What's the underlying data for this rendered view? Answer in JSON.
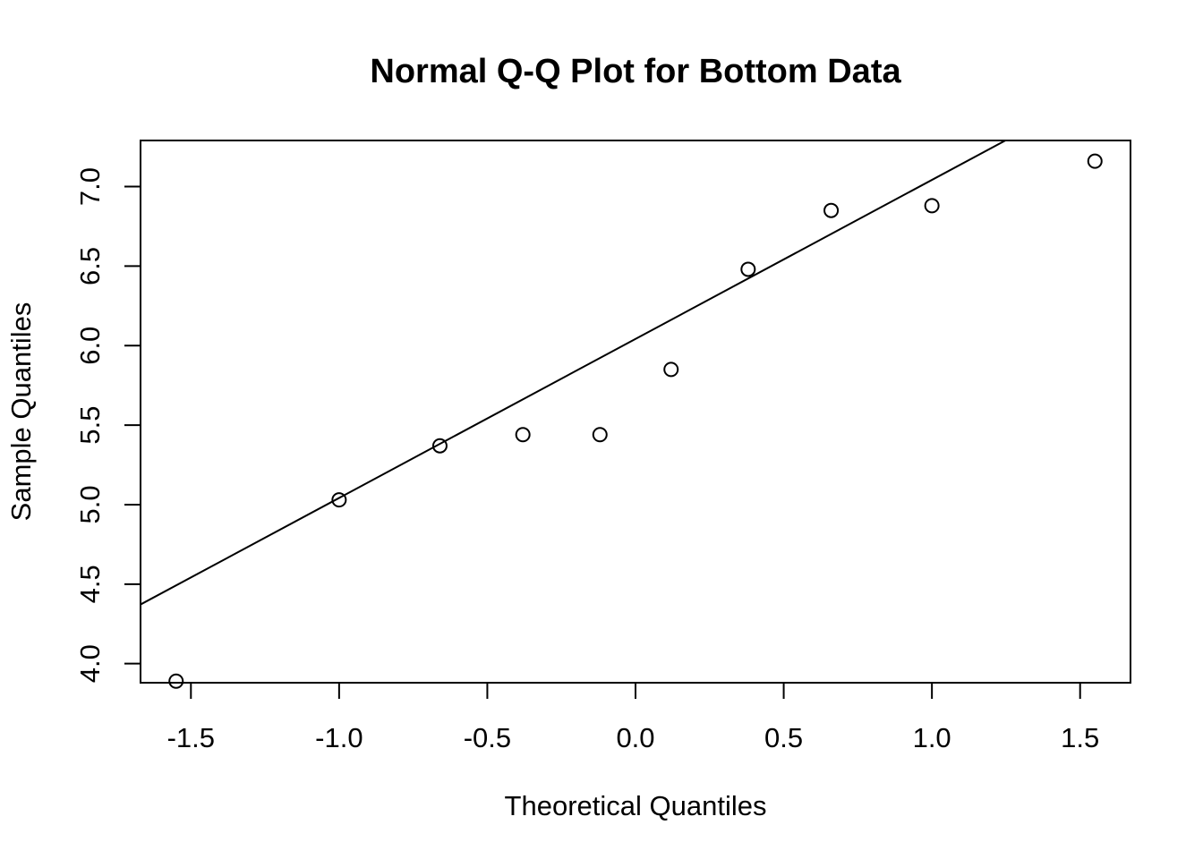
{
  "chart_data": {
    "type": "scatter",
    "title": "Normal Q-Q Plot for Bottom Data",
    "xlabel": "Theoretical Quantiles",
    "ylabel": "Sample Quantiles",
    "xlim": [
      -1.67,
      1.67
    ],
    "ylim": [
      3.88,
      7.29
    ],
    "xticks": [
      -1.5,
      -1.0,
      -0.5,
      0.0,
      0.5,
      1.0,
      1.5
    ],
    "xtick_labels": [
      "-1.5",
      "-1.0",
      "-0.5",
      "0.0",
      "0.5",
      "1.0",
      "1.5"
    ],
    "yticks": [
      4.0,
      4.5,
      5.0,
      5.5,
      6.0,
      6.5,
      7.0
    ],
    "ytick_labels": [
      "4.0",
      "4.5",
      "5.0",
      "5.5",
      "6.0",
      "6.5",
      "7.0"
    ],
    "grid": false,
    "points": [
      {
        "x": -1.55,
        "y": 3.89
      },
      {
        "x": -1.0,
        "y": 5.03
      },
      {
        "x": -0.66,
        "y": 5.37
      },
      {
        "x": -0.38,
        "y": 5.44
      },
      {
        "x": -0.12,
        "y": 5.44
      },
      {
        "x": 0.12,
        "y": 5.85
      },
      {
        "x": 0.38,
        "y": 6.48
      },
      {
        "x": 0.66,
        "y": 6.85
      },
      {
        "x": 1.0,
        "y": 6.88
      },
      {
        "x": 1.55,
        "y": 7.16
      }
    ],
    "reference_line": {
      "intercept": 6.042,
      "slope": 1.0
    }
  }
}
